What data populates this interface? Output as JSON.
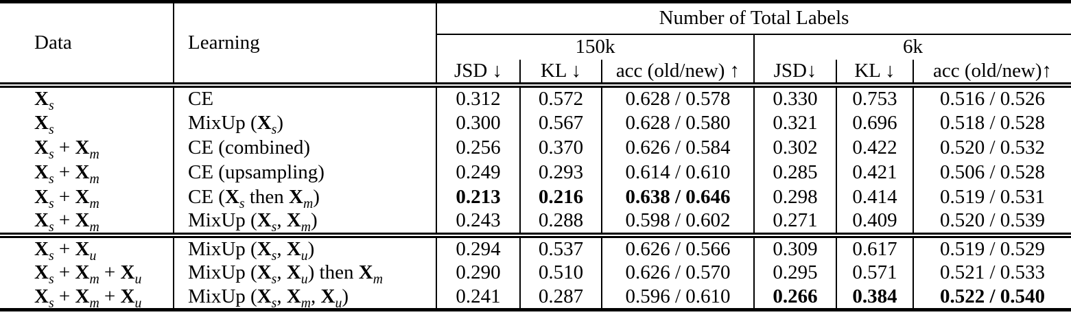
{
  "table": {
    "header": {
      "data_label": "Data",
      "learning_label": "Learning",
      "group_label": "Number of Total Labels",
      "subgroups": [
        {
          "label": "150k",
          "columns": [
            "JSD ↓",
            "KL ↓",
            "acc (old/new) ↑"
          ]
        },
        {
          "label": "6k",
          "columns": [
            "JSD↓",
            "KL ↓",
            "acc (old/new)↑"
          ]
        }
      ]
    },
    "groups": [
      {
        "rows": [
          {
            "data": "X_s",
            "learning": "CE",
            "values": [
              "0.312",
              "0.572",
              "0.628 / 0.578",
              "0.330",
              "0.753",
              "0.516 / 0.526"
            ],
            "bold": []
          },
          {
            "data": "X_s",
            "learning": "MixUp (X_s)",
            "values": [
              "0.300",
              "0.567",
              "0.628 / 0.580",
              "0.321",
              "0.696",
              "0.518 / 0.528"
            ],
            "bold": []
          },
          {
            "data": "X_s + X_m",
            "learning": "CE (combined)",
            "values": [
              "0.256",
              "0.370",
              "0.626 / 0.584",
              "0.302",
              "0.422",
              "0.520 / 0.532"
            ],
            "bold": []
          },
          {
            "data": "X_s + X_m",
            "learning": "CE (upsampling)",
            "values": [
              "0.249",
              "0.293",
              "0.614 / 0.610",
              "0.285",
              "0.421",
              "0.506 / 0.528"
            ],
            "bold": []
          },
          {
            "data": "X_s + X_m",
            "learning": "CE (X_s then X_m)",
            "values": [
              "0.213",
              "0.216",
              "0.638 / 0.646",
              "0.298",
              "0.414",
              "0.519 / 0.531"
            ],
            "bold": [
              0,
              1,
              2
            ]
          },
          {
            "data": "X_s + X_m",
            "learning": "MixUp (X_s, X_m)",
            "values": [
              "0.243",
              "0.288",
              "0.598 / 0.602",
              "0.271",
              "0.409",
              "0.520 / 0.539"
            ],
            "bold": []
          }
        ]
      },
      {
        "rows": [
          {
            "data": "X_s + X_u",
            "learning": "MixUp (X_s, X_u)",
            "values": [
              "0.294",
              "0.537",
              "0.626 / 0.566",
              "0.309",
              "0.617",
              "0.519 / 0.529"
            ],
            "bold": []
          },
          {
            "data": "X_s + X_m + X_u",
            "learning": "MixUp (X_s, X_u) then X_m",
            "values": [
              "0.290",
              "0.510",
              "0.626 / 0.570",
              "0.295",
              "0.571",
              "0.521 / 0.533"
            ],
            "bold": []
          },
          {
            "data": "X_s + X_m + X_u",
            "learning": "MixUp (X_s, X_m, X_u)",
            "values": [
              "0.241",
              "0.287",
              "0.596 / 0.610",
              "0.266",
              "0.384",
              "0.522 / 0.540"
            ],
            "bold": [
              3,
              4,
              5
            ]
          }
        ]
      }
    ],
    "colors": {
      "text": "#000000",
      "background": "#ffffff",
      "rule": "#000000"
    }
  }
}
